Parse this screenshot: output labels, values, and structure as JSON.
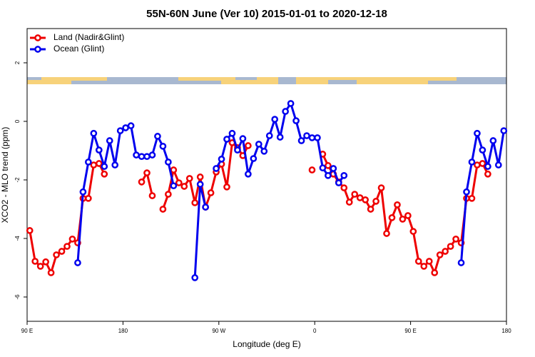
{
  "chart_data": {
    "type": "line",
    "title": "55N-60N June (Ver 10)   2015-01-01 to 2020-12-18",
    "xlabel": "Longitude (deg E)",
    "ylabel": "XCO2 - MLO trend (ppm)",
    "x": [
      92.5,
      97.5,
      102.5,
      107.5,
      112.5,
      117.5,
      122.5,
      127.5,
      132.5,
      137.5,
      142.5,
      147.5,
      152.5,
      157.5,
      162.5,
      167.5,
      172.5,
      177.5,
      182.5,
      187.5,
      192.5,
      197.5,
      202.5,
      207.5,
      212.5,
      217.5,
      222.5,
      227.5,
      232.5,
      237.5,
      242.5,
      247.5,
      252.5,
      257.5,
      262.5,
      267.5,
      272.5,
      277.5,
      282.5,
      287.5,
      292.5,
      297.5,
      302.5,
      307.5,
      312.5,
      317.5,
      322.5,
      327.5,
      332.5,
      337.5,
      342.5,
      347.5,
      352.5,
      357.5,
      362.5,
      367.5,
      372.5,
      377.5,
      382.5,
      387.5,
      392.5,
      397.5,
      402.5,
      407.5,
      412.5,
      417.5,
      422.5,
      427.5,
      432.5,
      437.5,
      442.5,
      447.5,
      452.5,
      457.5,
      462.5,
      467.5,
      472.5,
      477.5,
      482.5,
      487.5,
      492.5,
      497.5,
      502.5,
      507.5,
      512.5,
      517.5,
      522.5,
      527.5,
      532.5,
      537.5
    ],
    "series": [
      {
        "name": "Land (Nadir&Glint)",
        "color": "#ee0000",
        "values": [
          -3.73,
          -4.78,
          -4.95,
          -4.8,
          -5.17,
          -4.56,
          -4.44,
          -4.27,
          -4.02,
          -4.15,
          -2.63,
          -2.63,
          -1.49,
          -1.44,
          -1.8,
          null,
          null,
          null,
          null,
          null,
          null,
          -2.07,
          -1.76,
          -2.54,
          null,
          -3.0,
          -2.49,
          -1.66,
          -2.1,
          -2.22,
          -1.95,
          -2.78,
          -1.9,
          -2.93,
          -2.44,
          -1.73,
          -1.46,
          -2.24,
          -0.73,
          -0.9,
          -1.17,
          -0.83,
          null,
          null,
          null,
          null,
          null,
          null,
          null,
          null,
          null,
          null,
          null,
          -1.66,
          null,
          -1.12,
          -1.51,
          -1.8,
          -2.07,
          -2.27,
          -2.76,
          -2.49,
          -2.61,
          -2.68,
          -3.0,
          -2.73,
          -2.27,
          -3.83,
          -3.29,
          -2.85,
          -3.34,
          -3.22,
          -3.76,
          -4.78,
          -4.95,
          -4.78,
          -5.17,
          -4.56,
          -4.44,
          -4.27,
          -4.02,
          -4.15,
          -2.63,
          -2.63,
          -1.49,
          -1.44,
          -1.8,
          null,
          null,
          null
        ]
      },
      {
        "name": "Ocean (Glint)",
        "color": "#0000ee",
        "values": [
          null,
          null,
          null,
          null,
          null,
          null,
          null,
          null,
          null,
          -4.83,
          -2.41,
          -1.39,
          -0.41,
          -0.98,
          -1.54,
          -0.66,
          -1.49,
          -0.32,
          -0.22,
          -0.15,
          -1.15,
          -1.2,
          -1.2,
          -1.15,
          -0.51,
          -0.85,
          -1.39,
          -2.2,
          null,
          null,
          null,
          -5.34,
          -2.15,
          -2.93,
          null,
          -1.61,
          -1.29,
          -0.61,
          -0.41,
          -0.98,
          -0.59,
          -1.8,
          -1.27,
          -0.78,
          -1.02,
          -0.49,
          0.07,
          -0.54,
          0.34,
          0.61,
          0.02,
          -0.66,
          -0.49,
          -0.56,
          -0.56,
          -1.59,
          -1.85,
          -1.61,
          -2.1,
          -1.85,
          null,
          null,
          null,
          null,
          null,
          null,
          null,
          null,
          null,
          null,
          null,
          null,
          null,
          null,
          null,
          null,
          null,
          null,
          null,
          null,
          null,
          -4.83,
          -2.41,
          -1.39,
          -0.41,
          -0.98,
          -1.54,
          -0.66,
          -1.49,
          -0.32
        ]
      }
    ],
    "xlim": [
      90,
      540
    ],
    "xticks": [
      {
        "value": 90,
        "label": "90 E"
      },
      {
        "value": 180,
        "label": "180"
      },
      {
        "value": 270,
        "label": "90 W"
      },
      {
        "value": 360,
        "label": "0"
      },
      {
        "value": 450,
        "label": "90 E"
      },
      {
        "value": 540,
        "label": "180"
      }
    ],
    "ylim": [
      -6.83,
      3.17
    ],
    "yticks": [
      -6,
      -4,
      -2,
      0,
      2
    ],
    "legend": "top-left"
  }
}
